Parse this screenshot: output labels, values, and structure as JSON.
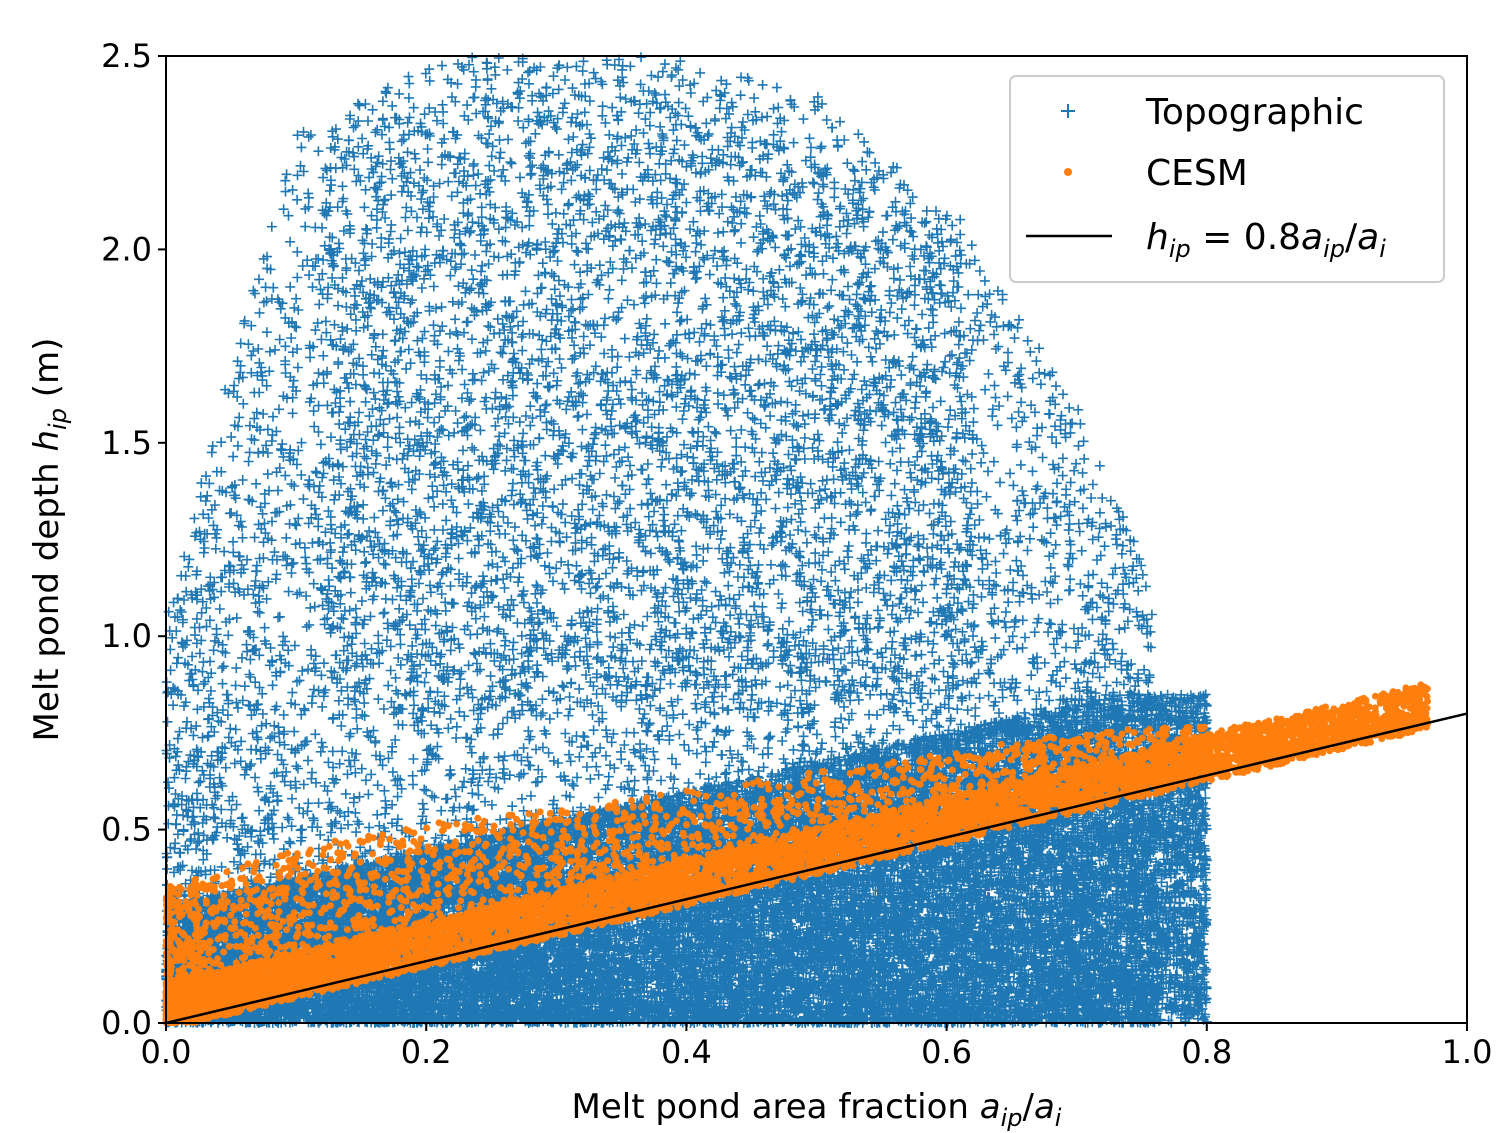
{
  "chart_data": {
    "type": "scatter",
    "xlabel": {
      "main": "Melt pond area fraction ",
      "math": "a_ip/a_i"
    },
    "ylabel": {
      "main": "Melt pond depth ",
      "math": "h_ip",
      "unit": " (m)"
    },
    "xlim": [
      0.0,
      1.0
    ],
    "ylim": [
      0.0,
      2.5
    ],
    "x_ticks": [
      0.0,
      0.2,
      0.4,
      0.6,
      0.8,
      1.0
    ],
    "x_tick_labels": [
      "0.0",
      "0.2",
      "0.4",
      "0.6",
      "0.8",
      "1.0"
    ],
    "y_ticks": [
      0.0,
      0.5,
      1.0,
      1.5,
      2.0,
      2.5
    ],
    "y_tick_labels": [
      "0.0",
      "0.5",
      "1.0",
      "1.5",
      "2.0",
      "2.5"
    ],
    "grid": false,
    "legend_position": "top-right",
    "series": [
      {
        "name": "Topographic",
        "marker": "plus",
        "color": "#1f77b4",
        "description_points": "dense cloud; x 0.0–0.81, y 0.0–2.5; densest below y≈0.8",
        "approx_envelope": [
          [
            0.0,
            0.0,
            1.1
          ],
          [
            0.1,
            0.0,
            2.3
          ],
          [
            0.2,
            0.0,
            2.5
          ],
          [
            0.3,
            0.0,
            2.5
          ],
          [
            0.4,
            0.0,
            2.5
          ],
          [
            0.5,
            0.0,
            2.4
          ],
          [
            0.6,
            0.0,
            2.1
          ],
          [
            0.7,
            0.0,
            1.6
          ],
          [
            0.75,
            0.0,
            1.2
          ],
          [
            0.8,
            0.0,
            0.3
          ]
        ]
      },
      {
        "name": "CESM",
        "marker": "dot",
        "color": "#ff7f0e",
        "description_points": "band slightly above line y=0.8x; x 0.0–0.97",
        "approx_band": [
          [
            0.0,
            0.0,
            0.35
          ],
          [
            0.1,
            0.08,
            0.45
          ],
          [
            0.2,
            0.16,
            0.52
          ],
          [
            0.3,
            0.24,
            0.55
          ],
          [
            0.4,
            0.32,
            0.6
          ],
          [
            0.5,
            0.4,
            0.65
          ],
          [
            0.6,
            0.48,
            0.7
          ],
          [
            0.7,
            0.56,
            0.75
          ],
          [
            0.8,
            0.64,
            0.77
          ],
          [
            0.9,
            0.72,
            0.79
          ],
          [
            0.97,
            0.77,
            0.8
          ]
        ]
      },
      {
        "name": "h_ip = 0.8a_ip/a_i",
        "type": "line",
        "color": "#000000",
        "x": [
          0.0,
          1.0
        ],
        "y": [
          0.0,
          0.8
        ]
      }
    ],
    "legend": [
      {
        "label": "Topographic"
      },
      {
        "label": "CESM"
      },
      {
        "label_parts": [
          "h",
          "ip",
          " = 0.8",
          "a",
          "ip",
          "/",
          "a",
          "i"
        ]
      }
    ]
  }
}
